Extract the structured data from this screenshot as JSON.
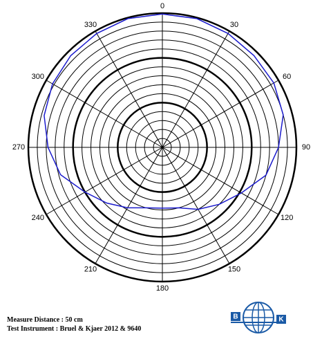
{
  "chart_data": {
    "type": "polar",
    "x": [
      0,
      15,
      30,
      45,
      60,
      75,
      90,
      105,
      120,
      135,
      150,
      165,
      180,
      195,
      210,
      225,
      240,
      255,
      270,
      285,
      300,
      315,
      330,
      345
    ],
    "series": [
      {
        "color": "#1a1acc",
        "values": [
          14.9,
          14.9,
          14.7,
          14.5,
          14.4,
          14.0,
          13.0,
          12.0,
          10.2,
          9.0,
          8.0,
          7.0,
          6.8,
          7.0,
          7.8,
          8.8,
          10.0,
          11.8,
          12.8,
          13.7,
          14.2,
          14.5,
          14.7,
          14.9
        ]
      }
    ],
    "rlim": [
      0,
      15
    ],
    "rticks": [
      1,
      2,
      3,
      4,
      5,
      6,
      7,
      8,
      9,
      10,
      11,
      12,
      13,
      14,
      15
    ],
    "major_every": 5,
    "xticks": [
      0,
      30,
      60,
      90,
      120,
      150,
      180,
      210,
      240,
      270,
      300,
      330
    ],
    "notes": [
      "Measure Distance : 50 cm",
      "Test Instrument : Bruel & Kjaer 2012 & 9640"
    ],
    "logo": {
      "left": "B",
      "right": "K"
    }
  }
}
